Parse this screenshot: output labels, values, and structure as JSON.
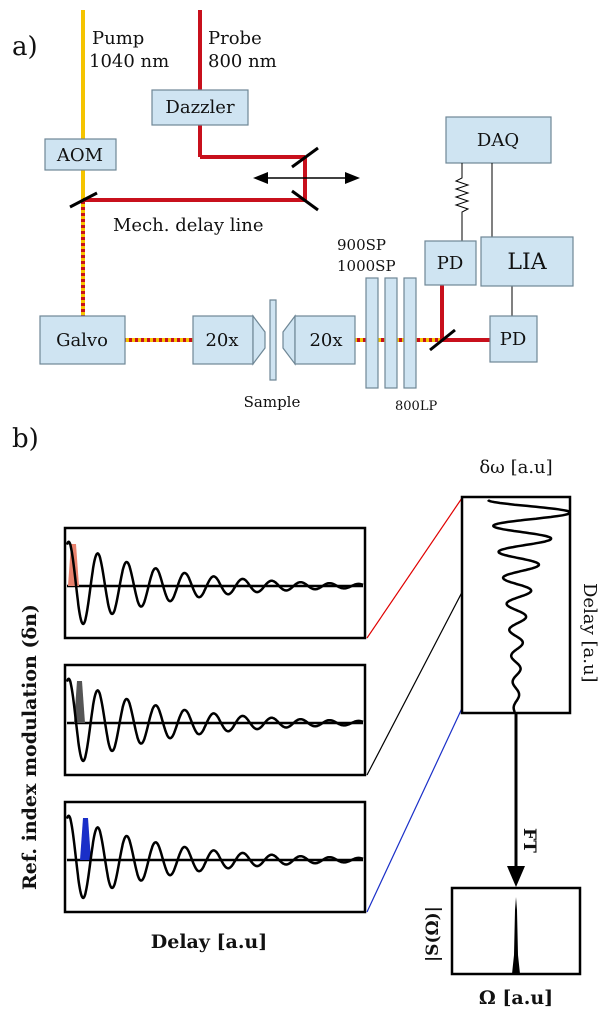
{
  "panel_a": {
    "label": "a)",
    "pump": {
      "name": "Pump",
      "wavelength": "1040 nm"
    },
    "probe": {
      "name": "Probe",
      "wavelength": "800 nm"
    },
    "components": {
      "dazzler": "Dazzler",
      "aom": "AOM",
      "daq": "DAQ",
      "pd_top": "PD",
      "lia": "LIA",
      "pd_bottom": "PD",
      "galvo": "Galvo",
      "obj_left": "20x",
      "obj_right": "20x",
      "sample": "Sample",
      "filter_900": "900SP",
      "filter_1000": "1000SP",
      "filter_800": "800LP",
      "delay_line": "Mech. delay line"
    },
    "colors": {
      "pump_beam": "#f5c400",
      "probe_beam": "#c8101c",
      "component_fill": "#cfe4f2"
    }
  },
  "panel_b": {
    "label": "b)",
    "ylabel": "Ref. index modulation (δn)",
    "xlabel": "Delay [a.u]",
    "right_top_label": "δω [a.u]",
    "right_side_label": "Delay [a.u]",
    "ft_label": "FT",
    "spectrum_ylabel": "|S(Ω)|",
    "spectrum_xlabel": "Ω [a.u]",
    "highlight_colors": [
      "#e8826e",
      "#555555",
      "#1a2fc8"
    ],
    "connector_colors": [
      "#e00000",
      "#000000",
      "#1a2fc8"
    ]
  }
}
